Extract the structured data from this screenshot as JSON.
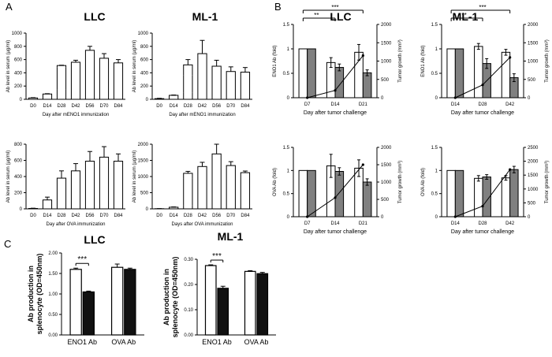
{
  "panels": {
    "A": "A",
    "B": "B",
    "C": "C"
  },
  "groups": {
    "llc": "LLC",
    "ml1": "ML-1"
  },
  "labels": {
    "ab_serum": "Ab level in serum (µg/ml)",
    "day_eno1": "Day after mENO1 immunization",
    "day_ova": "Day after OVA immunization",
    "days_ova": "Days after OVA immunization",
    "eno1_fold": "ENO1 Ab (fold)",
    "ova_fold": "OVA Ab (fold)",
    "tumor_growth": "Tumor growth (mm³)",
    "day_tumor": "Day after tumor challenge",
    "splenocyte": "Ab production in splenocyte (OD=450nm)"
  },
  "chart_data": [
    {
      "id": "A1",
      "type": "bar",
      "title": "LLC",
      "categories": [
        "D0",
        "D14",
        "D28",
        "D42",
        "D56",
        "D70",
        "D84"
      ],
      "values": [
        20,
        80,
        510,
        560,
        740,
        620,
        550
      ],
      "errors": [
        5,
        5,
        5,
        30,
        60,
        70,
        50
      ],
      "ylim": [
        0,
        1000
      ],
      "yticks": [
        0,
        200,
        400,
        600,
        800,
        1000
      ],
      "ylabel": "Ab level in serum (µg/ml)",
      "xlabel": "Day after mENO1 immunization",
      "break": [
        150,
        480
      ]
    },
    {
      "id": "A2",
      "type": "bar",
      "title": "ML-1",
      "categories": [
        "D0",
        "D14",
        "D28",
        "D42",
        "D56",
        "D70",
        "D84"
      ],
      "values": [
        10,
        60,
        520,
        690,
        500,
        420,
        410
      ],
      "errors": [
        5,
        5,
        80,
        200,
        90,
        70,
        70
      ],
      "ylim": [
        0,
        1000
      ],
      "yticks": [
        0,
        200,
        400,
        600,
        800,
        1000
      ],
      "ylabel": "Ab level in serum (µg/ml)",
      "xlabel": "Day after mENO1 immunization",
      "break": [
        100,
        360
      ]
    },
    {
      "id": "A3",
      "type": "bar",
      "title": "LLC",
      "categories": [
        "D0",
        "D14",
        "D28",
        "D42",
        "D56",
        "D70",
        "D84"
      ],
      "values": [
        5,
        110,
        380,
        470,
        590,
        640,
        590
      ],
      "errors": [
        3,
        35,
        90,
        90,
        120,
        130,
        90
      ],
      "ylim": [
        0,
        800
      ],
      "yticks": [
        0,
        200,
        400,
        600,
        800
      ],
      "ylabel": "Ab level in serum (µg/ml)",
      "xlabel": "Day after OVA immunization",
      "break": [
        150,
        380
      ]
    },
    {
      "id": "A4",
      "type": "bar",
      "title": "ML-1",
      "categories": [
        "D0",
        "D14",
        "D28",
        "D42",
        "D56",
        "D70",
        "D84"
      ],
      "values": [
        5,
        50,
        1100,
        1310,
        1700,
        1340,
        1120
      ],
      "errors": [
        3,
        10,
        60,
        130,
        300,
        120,
        50
      ],
      "ylim": [
        0,
        2000
      ],
      "yticks": [
        0,
        500,
        1000,
        1500,
        2000
      ],
      "ylabel": "Ab level in serum (µg/ml)",
      "xlabel": "Days after OVA immunization",
      "break": [
        100,
        950
      ]
    },
    {
      "id": "B1",
      "type": "bar+line",
      "title": "LLC",
      "categories": [
        "D7",
        "D14",
        "D21"
      ],
      "series": [
        {
          "name": "white",
          "values": [
            1.0,
            0.72,
            0.93
          ],
          "errors": [
            0,
            0.1,
            0.16
          ]
        },
        {
          "name": "gray",
          "values": [
            1.0,
            0.62,
            0.51
          ],
          "errors": [
            0,
            0.07,
            0.06
          ]
        }
      ],
      "tumor_growth": [
        0,
        200,
        1150
      ],
      "ylim": [
        0,
        1.5
      ],
      "yticks": [
        0,
        0.5,
        1,
        1.5
      ],
      "y2lim": [
        0,
        2000
      ],
      "y2ticks": [
        0,
        500,
        1000,
        1500,
        2000
      ],
      "ylabel": "ENO1 Ab (fold)",
      "y2label": "Tumor growth (mm³)",
      "xlabel": "Day after tumor challenge",
      "significance": [
        "**",
        "***"
      ]
    },
    {
      "id": "B2",
      "type": "bar+line",
      "title": "ML-1",
      "categories": [
        "D14",
        "D28",
        "D42"
      ],
      "series": [
        {
          "name": "white",
          "values": [
            1.0,
            1.05,
            0.93
          ],
          "errors": [
            0,
            0.06,
            0.06
          ]
        },
        {
          "name": "gray",
          "values": [
            1.0,
            0.7,
            0.41
          ],
          "errors": [
            0,
            0.1,
            0.08
          ]
        }
      ],
      "tumor_growth": [
        0,
        350,
        1100
      ],
      "ylim": [
        0,
        1.5
      ],
      "yticks": [
        0,
        0.5,
        1,
        1.5
      ],
      "y2lim": [
        0,
        2000
      ],
      "y2ticks": [
        0,
        500,
        1000,
        1500,
        2000
      ],
      "ylabel": "ENO1 Ab (fold)",
      "y2label": "Tumor growth (mm³)",
      "xlabel": "Day after tumor challenge",
      "significance": [
        "**",
        "***"
      ]
    },
    {
      "id": "B3",
      "type": "bar+line",
      "title": "",
      "categories": [
        "D7",
        "D14",
        "D21"
      ],
      "series": [
        {
          "name": "white",
          "values": [
            1.0,
            1.1,
            1.05
          ],
          "errors": [
            0,
            0.25,
            0.18
          ]
        },
        {
          "name": "gray",
          "values": [
            1.0,
            0.98,
            0.75
          ],
          "errors": [
            0,
            0.08,
            0.07
          ]
        }
      ],
      "tumor_growth": [
        0,
        550,
        1500
      ],
      "ylim": [
        0,
        1.5
      ],
      "yticks": [
        0,
        0.5,
        1,
        1.5
      ],
      "y2lim": [
        0,
        2000
      ],
      "y2ticks": [
        0,
        500,
        1000,
        1500,
        2000
      ],
      "ylabel": "OVA Ab (fold)",
      "y2label": "Tumor growth (mm³)",
      "xlabel": "Day after tumor challenge"
    },
    {
      "id": "B4",
      "type": "bar+line",
      "title": "",
      "categories": [
        "D14",
        "D28",
        "D42"
      ],
      "series": [
        {
          "name": "white",
          "values": [
            1.0,
            0.83,
            0.84
          ],
          "errors": [
            0,
            0.06,
            0.05
          ]
        },
        {
          "name": "gray",
          "values": [
            1.0,
            0.86,
            1.02
          ],
          "errors": [
            0,
            0.05,
            0.07
          ]
        }
      ],
      "tumor_growth": [
        0,
        380,
        1700
      ],
      "ylim": [
        0,
        1.5
      ],
      "yticks": [
        0,
        0.5,
        1,
        1.5
      ],
      "y2lim": [
        0,
        2500
      ],
      "y2ticks": [
        0,
        500,
        1000,
        1500,
        2000,
        2500
      ],
      "ylabel": "OVA Ab (fold)",
      "y2label": "Tumor growth (mm³)",
      "xlabel": "Day after tumor challenge"
    },
    {
      "id": "C1",
      "type": "bar",
      "title": "LLC",
      "categories": [
        "ENO1 Ab",
        "OVA Ab"
      ],
      "series": [
        {
          "name": "white",
          "values": [
            1.6,
            1.65
          ],
          "errors": [
            0.03,
            0.08
          ]
        },
        {
          "name": "black",
          "values": [
            1.05,
            1.6
          ],
          "errors": [
            0.02,
            0.03
          ]
        }
      ],
      "ylim": [
        0,
        2.0
      ],
      "yticks": [
        0.0,
        0.5,
        1.0,
        1.5,
        2.0
      ],
      "ylabel": "Ab production in splenocyte (OD=450nm)",
      "significance": [
        "***"
      ]
    },
    {
      "id": "C2",
      "type": "bar",
      "title": "ML-1",
      "categories": [
        "ENO1 Ab",
        "OVA Ab"
      ],
      "series": [
        {
          "name": "white",
          "values": [
            0.275,
            0.252
          ],
          "errors": [
            0.003,
            0.003
          ]
        },
        {
          "name": "black",
          "values": [
            0.185,
            0.243
          ],
          "errors": [
            0.008,
            0.005
          ]
        }
      ],
      "ylim": [
        0,
        0.3
      ],
      "yticks": [
        0.0,
        0.1,
        0.2,
        0.3
      ],
      "ylabel": "Ab production in splenocyte (OD=450nm)",
      "significance": [
        "***"
      ]
    }
  ]
}
